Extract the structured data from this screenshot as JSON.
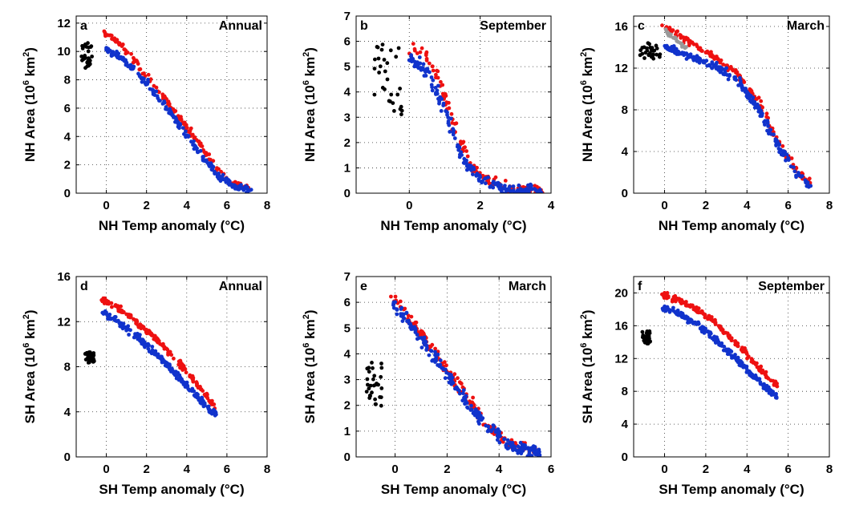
{
  "chart_data": [
    {
      "type": "scatter",
      "label": "a",
      "title": "Annual",
      "xlabel": "NH Temp anomaly (°C)",
      "ylabel": {
        "pre": "NH Area (10",
        "sup": "6",
        "mid": " km",
        "sup2": "2",
        "post": ")"
      },
      "xlim": [
        -1.5,
        8
      ],
      "ylim": [
        0,
        12.5
      ],
      "xticks": [
        0,
        2,
        4,
        6,
        8
      ],
      "yticks": [
        0,
        2,
        4,
        6,
        8,
        10,
        12
      ],
      "grid": true,
      "series": [
        {
          "color": "#000000",
          "clusters": [
            {
              "x": [
                -1.3,
                -0.7
              ],
              "y": [
                8.8,
                10.6
              ],
              "n": 30
            }
          ]
        },
        {
          "color": "#ee1111",
          "curve": [
            [
              -0.1,
              11.3
            ],
            [
              0.5,
              10.8
            ],
            [
              1.5,
              9.2
            ],
            [
              2.5,
              7.4
            ],
            [
              3.5,
              5.6
            ],
            [
              4.5,
              3.7
            ],
            [
              5.5,
              1.7
            ],
            [
              6.3,
              0.7
            ],
            [
              7.1,
              0.3
            ]
          ],
          "n": 150,
          "jitter": [
            0.3,
            0.25
          ]
        },
        {
          "color": "#1133cc",
          "curve": [
            [
              0.0,
              10.1
            ],
            [
              0.5,
              9.8
            ],
            [
              1.5,
              8.6
            ],
            [
              2.5,
              6.9
            ],
            [
              3.5,
              5.1
            ],
            [
              4.5,
              3.1
            ],
            [
              5.5,
              1.3
            ],
            [
              6.3,
              0.5
            ],
            [
              7.2,
              0.2
            ]
          ],
          "n": 220,
          "jitter": [
            0.3,
            0.3
          ]
        }
      ]
    },
    {
      "type": "scatter",
      "label": "b",
      "title": "September",
      "xlabel": "NH Temp anomaly (°C)",
      "ylabel": {
        "pre": "NH Area (10",
        "sup": "6",
        "mid": " km",
        "sup2": "2",
        "post": ")"
      },
      "xlim": [
        -1.5,
        4
      ],
      "ylim": [
        0,
        7
      ],
      "xticks": [
        0,
        2,
        4
      ],
      "yticks": [
        0,
        1,
        2,
        3,
        4,
        5,
        6,
        7
      ],
      "grid": true,
      "series": [
        {
          "color": "#000000",
          "clusters": [
            {
              "x": [
                -1.0,
                -0.2
              ],
              "y": [
                3.1,
                6.0
              ],
              "n": 30
            }
          ]
        },
        {
          "color": "#ee1111",
          "curve": [
            [
              0.0,
              5.7
            ],
            [
              0.4,
              5.6
            ],
            [
              0.8,
              4.6
            ],
            [
              1.1,
              3.4
            ],
            [
              1.4,
              2.1
            ],
            [
              1.8,
              1.0
            ],
            [
              2.2,
              0.5
            ],
            [
              2.8,
              0.2
            ],
            [
              3.8,
              0.08
            ]
          ],
          "n": 140,
          "jitter": [
            0.18,
            0.35
          ]
        },
        {
          "color": "#1133cc",
          "curve": [
            [
              0.0,
              5.3
            ],
            [
              0.4,
              5.0
            ],
            [
              0.8,
              4.0
            ],
            [
              1.1,
              2.9
            ],
            [
              1.4,
              1.7
            ],
            [
              1.8,
              0.8
            ],
            [
              2.2,
              0.4
            ],
            [
              2.8,
              0.15
            ],
            [
              3.8,
              0.05
            ]
          ],
          "n": 180,
          "jitter": [
            0.18,
            0.35
          ]
        }
      ]
    },
    {
      "type": "scatter",
      "label": "c",
      "title": "March",
      "xlabel": "NH Temp anomaly (°C)",
      "ylabel": {
        "pre": "NH Area (10",
        "sup": "6",
        "mid": " km",
        "sup2": "2",
        "post": ")"
      },
      "xlim": [
        -1.5,
        8
      ],
      "ylim": [
        0,
        17
      ],
      "xticks": [
        0,
        2,
        4,
        6,
        8
      ],
      "yticks": [
        0,
        4,
        8,
        12,
        16
      ],
      "grid": true,
      "series": [
        {
          "color": "#000000",
          "clusters": [
            {
              "x": [
                -1.2,
                -0.2
              ],
              "y": [
                12.9,
                14.4
              ],
              "n": 30
            }
          ]
        },
        {
          "color": "#ee1111",
          "curve": [
            [
              -0.1,
              16.0
            ],
            [
              0.5,
              15.4
            ],
            [
              1.5,
              14.1
            ],
            [
              2.5,
              13.0
            ],
            [
              3.5,
              11.5
            ],
            [
              4.5,
              9.0
            ],
            [
              5.5,
              5.0
            ],
            [
              6.5,
              2.0
            ],
            [
              7.1,
              0.9
            ]
          ],
          "n": 170,
          "jitter": [
            0.3,
            0.4
          ]
        },
        {
          "color": "#999999",
          "curve": [
            [
              0.0,
              15.6
            ],
            [
              0.5,
              14.8
            ],
            [
              0.9,
              14.2
            ],
            [
              1.2,
              13.8
            ]
          ],
          "n": 25,
          "jitter": [
            0.08,
            0.3
          ]
        },
        {
          "color": "#1133cc",
          "curve": [
            [
              0.0,
              14.0
            ],
            [
              0.5,
              13.7
            ],
            [
              1.5,
              12.9
            ],
            [
              2.5,
              12.1
            ],
            [
              3.5,
              10.9
            ],
            [
              4.5,
              8.3
            ],
            [
              5.5,
              4.6
            ],
            [
              6.5,
              1.7
            ],
            [
              7.1,
              0.6
            ]
          ],
          "n": 230,
          "jitter": [
            0.3,
            0.45
          ]
        }
      ]
    },
    {
      "type": "scatter",
      "label": "d",
      "title": "Annual",
      "xlabel": "SH Temp anomaly (°C)",
      "ylabel": {
        "pre": "SH Area (10",
        "sup": "6",
        "mid": " km",
        "sup2": "2",
        "post": ")"
      },
      "xlim": [
        -1.5,
        8
      ],
      "ylim": [
        0,
        16
      ],
      "xticks": [
        0,
        2,
        4,
        6,
        8
      ],
      "yticks": [
        0,
        4,
        8,
        12,
        16
      ],
      "grid": true,
      "series": [
        {
          "color": "#000000",
          "clusters": [
            {
              "x": [
                -1.1,
                -0.6
              ],
              "y": [
                8.3,
                9.3
              ],
              "n": 30
            }
          ]
        },
        {
          "color": "#ee1111",
          "curve": [
            [
              -0.2,
              14.0
            ],
            [
              0.5,
              13.3
            ],
            [
              1.5,
              12.0
            ],
            [
              2.5,
              10.4
            ],
            [
              3.5,
              8.6
            ],
            [
              4.5,
              6.5
            ],
            [
              5.4,
              4.5
            ]
          ],
          "n": 170,
          "jitter": [
            0.25,
            0.35
          ]
        },
        {
          "color": "#1133cc",
          "curve": [
            [
              -0.2,
              12.8
            ],
            [
              0.5,
              12.1
            ],
            [
              1.5,
              10.7
            ],
            [
              2.5,
              9.1
            ],
            [
              3.5,
              7.3
            ],
            [
              4.5,
              5.4
            ],
            [
              5.5,
              3.6
            ]
          ],
          "n": 230,
          "jitter": [
            0.25,
            0.4
          ]
        }
      ]
    },
    {
      "type": "scatter",
      "label": "e",
      "title": "March",
      "xlabel": "SH Temp anomaly (°C)",
      "ylabel": {
        "pre": "SH Area (10",
        "sup": "6",
        "mid": " km",
        "sup2": "2",
        "post": ")"
      },
      "xlim": [
        -1.5,
        6
      ],
      "ylim": [
        0,
        7
      ],
      "xticks": [
        0,
        2,
        4,
        6
      ],
      "yticks": [
        0,
        1,
        2,
        3,
        4,
        5,
        6,
        7
      ],
      "grid": true,
      "series": [
        {
          "color": "#000000",
          "clusters": [
            {
              "x": [
                -1.1,
                -0.5
              ],
              "y": [
                1.9,
                3.7
              ],
              "n": 30
            }
          ]
        },
        {
          "color": "#ee1111",
          "curve": [
            [
              -0.1,
              6.3
            ],
            [
              0.5,
              5.4
            ],
            [
              1.5,
              4.1
            ],
            [
              2.5,
              2.7
            ],
            [
              3.5,
              1.3
            ],
            [
              4.5,
              0.5
            ],
            [
              5.5,
              0.2
            ]
          ],
          "n": 150,
          "jitter": [
            0.22,
            0.35
          ]
        },
        {
          "color": "#1133cc",
          "curve": [
            [
              -0.1,
              6.1
            ],
            [
              0.5,
              5.2
            ],
            [
              1.5,
              3.9
            ],
            [
              2.5,
              2.5
            ],
            [
              3.5,
              1.2
            ],
            [
              4.5,
              0.4
            ],
            [
              5.6,
              0.15
            ]
          ],
          "n": 220,
          "jitter": [
            0.22,
            0.35
          ]
        }
      ]
    },
    {
      "type": "scatter",
      "label": "f",
      "title": "September",
      "xlabel": "SH Temp anomaly (°C)",
      "ylabel": {
        "pre": "SH Area (10",
        "sup": "6",
        "mid": " km",
        "sup2": "2",
        "post": ")"
      },
      "xlim": [
        -1.5,
        8
      ],
      "ylim": [
        0,
        22
      ],
      "xticks": [
        0,
        2,
        4,
        6,
        8
      ],
      "yticks": [
        0,
        4,
        8,
        12,
        16,
        20
      ],
      "grid": true,
      "series": [
        {
          "color": "#000000",
          "clusters": [
            {
              "x": [
                -1.1,
                -0.7
              ],
              "y": [
                13.8,
                15.4
              ],
              "n": 30
            }
          ]
        },
        {
          "color": "#ee1111",
          "curve": [
            [
              -0.1,
              19.8
            ],
            [
              0.5,
              19.3
            ],
            [
              1.5,
              18.1
            ],
            [
              2.5,
              16.3
            ],
            [
              3.5,
              13.9
            ],
            [
              4.5,
              11.1
            ],
            [
              5.5,
              8.4
            ]
          ],
          "n": 170,
          "jitter": [
            0.25,
            0.5
          ]
        },
        {
          "color": "#1133cc",
          "curve": [
            [
              -0.1,
              18.3
            ],
            [
              0.5,
              17.7
            ],
            [
              1.5,
              16.3
            ],
            [
              2.5,
              14.3
            ],
            [
              3.5,
              11.9
            ],
            [
              4.5,
              9.4
            ],
            [
              5.5,
              7.3
            ]
          ],
          "n": 230,
          "jitter": [
            0.25,
            0.55
          ]
        }
      ]
    }
  ]
}
